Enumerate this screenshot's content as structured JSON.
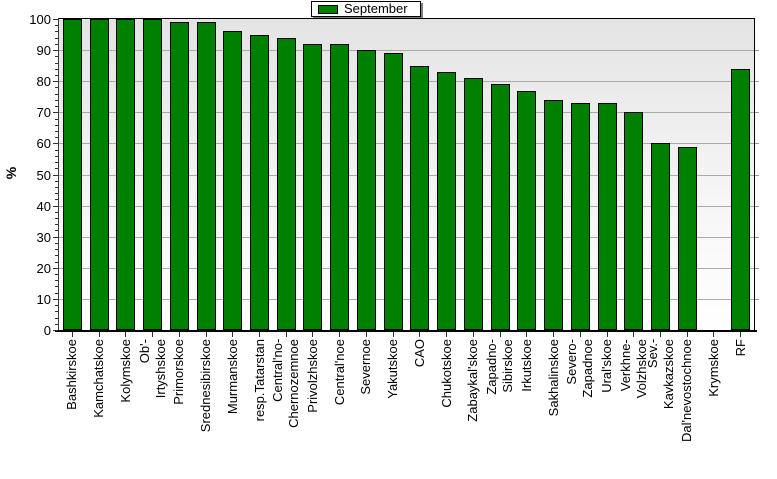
{
  "chart_data": {
    "type": "bar",
    "title": "",
    "xlabel": "",
    "ylabel": "%",
    "ylim": [
      0,
      100
    ],
    "ytick_step": 10,
    "yminor_step": 2,
    "grid": true,
    "legend": [
      "September"
    ],
    "legend_position": "top-center",
    "categories": [
      "Bashkirskoe",
      "Kamchatskoe",
      "Kolymskoe",
      "Ob'-\nIrtyshskoe",
      "Primorskoe",
      "Srednesibirskoe",
      "Murmanskoe",
      "resp.Tatarstan",
      "Central'no-\nChernozemnoe",
      "Privolzhskoe",
      "Central'noe",
      "Severnoe",
      "Yakutskoe",
      "CAO",
      "Chukotskoe",
      "Zabaykal'skoe",
      "Zapadno-\nSibirskoe",
      "Irkutskoe",
      "Sakhalinskoe",
      "Severo-\nZapadnoe",
      "Ural'skoe",
      "Verkhne-\nVolzhskoe",
      "Sev.-\nKavkazskoe",
      "Dal'nevostochnoe",
      "Krymskoe",
      "RF"
    ],
    "values": [
      100,
      100,
      100,
      100,
      99,
      99,
      96,
      95,
      94,
      92,
      92,
      90,
      89,
      85,
      83,
      81,
      79,
      77,
      74,
      73,
      73,
      70,
      60,
      59,
      null,
      84
    ]
  },
  "style": {
    "bar_fill": "#008000",
    "bar_border": "#000000",
    "plot_bg_top": "#e4e4e4",
    "plot_bg_bottom": "#ffffff",
    "gridline_color": "#aaaaaa",
    "axis_color": "#000000",
    "right_tick_color": "#999999",
    "legend_shadow": "#808080",
    "text_color": "#000000"
  }
}
